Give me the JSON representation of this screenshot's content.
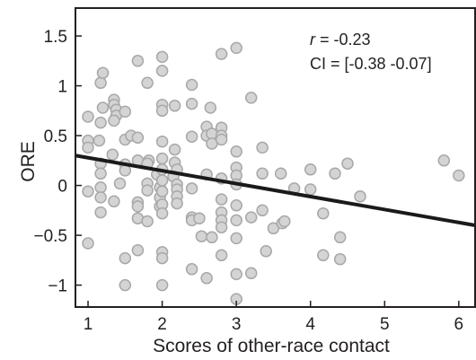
{
  "chart_data": {
    "type": "scatter",
    "xlabel": "Scores of other-race contact",
    "ylabel": "ORE",
    "xlim": [
      0.83,
      6.22
    ],
    "ylim": [
      -1.22,
      1.78
    ],
    "xticks": [
      "1",
      "2",
      "3",
      "4",
      "5",
      "6"
    ],
    "yticks": [
      "1.5",
      "1",
      "0.5",
      "0",
      "−0.5",
      "−1"
    ],
    "xtick_values": [
      1,
      2,
      3,
      4,
      5,
      6
    ],
    "ytick_values": [
      1.5,
      1,
      0.5,
      0,
      -0.5,
      -1
    ],
    "annotation": {
      "r_symbol": "r",
      "r_text": " = -0.23",
      "ci_text": "CI = [-0.38 -0.07]"
    },
    "regression_line": {
      "x": [
        0.83,
        6.22
      ],
      "y": [
        0.3,
        -0.4
      ]
    },
    "colors": {
      "marker_fill": "#d4d4d4",
      "marker_edge": "#a8a8a8",
      "line": "#1a1a1a",
      "axis": "#231f20"
    },
    "points": [
      [
        1.0,
        0.69
      ],
      [
        1.0,
        0.45
      ],
      [
        1.0,
        0.38
      ],
      [
        1.0,
        -0.06
      ],
      [
        1.0,
        -0.58
      ],
      [
        1.17,
        1.03
      ],
      [
        1.2,
        1.13
      ],
      [
        1.2,
        0.78
      ],
      [
        1.17,
        0.63
      ],
      [
        1.15,
        0.45
      ],
      [
        1.17,
        0.22
      ],
      [
        1.17,
        0.12
      ],
      [
        1.17,
        -0.02
      ],
      [
        1.17,
        -0.12
      ],
      [
        1.17,
        -0.27
      ],
      [
        1.35,
        0.86
      ],
      [
        1.35,
        0.81
      ],
      [
        1.38,
        0.76
      ],
      [
        1.38,
        0.7
      ],
      [
        1.35,
        0.65
      ],
      [
        1.33,
        0.31
      ],
      [
        1.35,
        -0.16
      ],
      [
        1.43,
        0.02
      ],
      [
        1.5,
        0.74
      ],
      [
        1.5,
        0.46
      ],
      [
        1.5,
        0.21
      ],
      [
        1.5,
        0.15
      ],
      [
        1.5,
        -0.73
      ],
      [
        1.5,
        -1.0
      ],
      [
        1.58,
        0.5
      ],
      [
        1.67,
        1.25
      ],
      [
        1.67,
        0.48
      ],
      [
        1.67,
        0.25
      ],
      [
        1.67,
        -0.17
      ],
      [
        1.67,
        -0.21
      ],
      [
        1.67,
        -0.33
      ],
      [
        1.67,
        -0.65
      ],
      [
        1.8,
        1.03
      ],
      [
        1.82,
        0.25
      ],
      [
        1.8,
        0.22
      ],
      [
        1.8,
        0.02
      ],
      [
        1.8,
        -0.05
      ],
      [
        1.8,
        -0.36
      ],
      [
        1.93,
        0.11
      ],
      [
        1.97,
        -0.02
      ],
      [
        1.97,
        -0.12
      ],
      [
        1.97,
        -0.21
      ],
      [
        2.0,
        1.29
      ],
      [
        2.0,
        1.15
      ],
      [
        2.0,
        0.81
      ],
      [
        2.0,
        0.75
      ],
      [
        2.0,
        0.44
      ],
      [
        2.0,
        0.27
      ],
      [
        2.0,
        0.16
      ],
      [
        2.0,
        0.05
      ],
      [
        2.0,
        -0.06
      ],
      [
        2.0,
        -0.19
      ],
      [
        2.0,
        -0.28
      ],
      [
        2.0,
        -0.67
      ],
      [
        2.0,
        -0.73
      ],
      [
        2.0,
        -1.0
      ],
      [
        2.17,
        0.8
      ],
      [
        2.17,
        0.36
      ],
      [
        2.17,
        0.23
      ],
      [
        2.2,
        0.16
      ],
      [
        2.15,
        0.09
      ],
      [
        2.2,
        0.01
      ],
      [
        2.2,
        -0.04
      ],
      [
        2.2,
        -0.11
      ],
      [
        2.2,
        -0.18
      ],
      [
        2.4,
        1.01
      ],
      [
        2.4,
        0.82
      ],
      [
        2.4,
        0.49
      ],
      [
        2.4,
        -0.03
      ],
      [
        2.4,
        -0.32
      ],
      [
        2.4,
        -0.35
      ],
      [
        2.4,
        -0.84
      ],
      [
        2.5,
        -0.33
      ],
      [
        2.53,
        -0.51
      ],
      [
        2.6,
        0.59
      ],
      [
        2.6,
        0.5
      ],
      [
        2.6,
        0.11
      ],
      [
        2.6,
        -0.93
      ],
      [
        2.65,
        0.78
      ],
      [
        2.67,
        0.52
      ],
      [
        2.67,
        0.42
      ],
      [
        2.67,
        -0.52
      ],
      [
        2.8,
        1.32
      ],
      [
        2.8,
        0.58
      ],
      [
        2.8,
        0.5
      ],
      [
        2.8,
        0.46
      ],
      [
        2.8,
        0.07
      ],
      [
        2.8,
        -0.14
      ],
      [
        2.8,
        -0.27
      ],
      [
        2.8,
        -0.35
      ],
      [
        2.8,
        -0.42
      ],
      [
        2.8,
        -0.7
      ],
      [
        3.0,
        1.38
      ],
      [
        3.0,
        0.34
      ],
      [
        3.0,
        0.18
      ],
      [
        3.0,
        0.1
      ],
      [
        3.0,
        0.01
      ],
      [
        3.0,
        -0.2
      ],
      [
        3.0,
        -0.35
      ],
      [
        3.0,
        -0.53
      ],
      [
        3.0,
        -0.89
      ],
      [
        3.0,
        -1.14
      ],
      [
        3.2,
        0.88
      ],
      [
        3.2,
        -0.32
      ],
      [
        3.2,
        -0.88
      ],
      [
        3.35,
        0.38
      ],
      [
        3.35,
        0.12
      ],
      [
        3.35,
        -0.25
      ],
      [
        3.4,
        -0.66
      ],
      [
        3.5,
        -0.43
      ],
      [
        3.6,
        0.12
      ],
      [
        3.62,
        -0.38
      ],
      [
        3.65,
        -0.36
      ],
      [
        3.78,
        -0.03
      ],
      [
        4.0,
        0.16
      ],
      [
        4.0,
        -0.04
      ],
      [
        4.17,
        -0.28
      ],
      [
        4.17,
        -0.7
      ],
      [
        4.33,
        0.12
      ],
      [
        4.4,
        -0.52
      ],
      [
        4.4,
        -0.74
      ],
      [
        4.5,
        0.22
      ],
      [
        4.67,
        -0.11
      ],
      [
        5.8,
        0.25
      ],
      [
        6.0,
        0.1
      ]
    ]
  }
}
